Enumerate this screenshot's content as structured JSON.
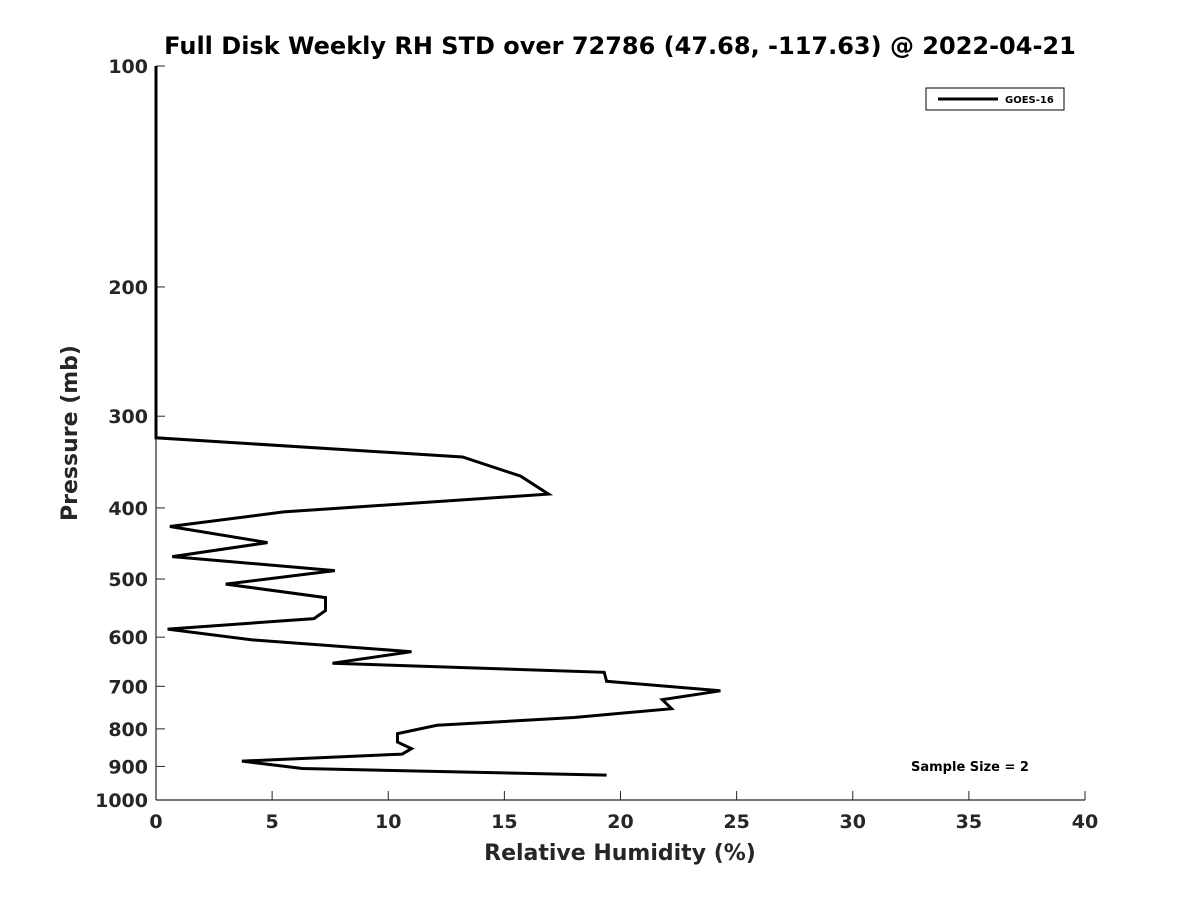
{
  "chart_data": {
    "type": "line",
    "title": "Full Disk Weekly RH STD over 72786 (47.68, -117.63) @ 2022-04-21",
    "xlabel": "Relative Humidity (%)",
    "ylabel": "Pressure (mb)",
    "xlim": [
      0,
      40
    ],
    "ylim": [
      100,
      1000
    ],
    "yscale": "log",
    "y_reversed": true,
    "grid": false,
    "xticks": [
      0,
      5,
      10,
      15,
      20,
      25,
      30,
      35,
      40
    ],
    "yticks": [
      100,
      200,
      300,
      400,
      500,
      600,
      700,
      800,
      900,
      1000
    ],
    "legend": {
      "position": "top-right"
    },
    "series": [
      {
        "name": "GOES-16",
        "color": "#000000",
        "points": [
          {
            "x": 0.0,
            "y": 100
          },
          {
            "x": 0.0,
            "y": 200
          },
          {
            "x": 0.0,
            "y": 300
          },
          {
            "x": 0.0,
            "y": 321
          },
          {
            "x": 13.2,
            "y": 341
          },
          {
            "x": 15.7,
            "y": 362
          },
          {
            "x": 16.9,
            "y": 383
          },
          {
            "x": 5.5,
            "y": 405
          },
          {
            "x": 0.6,
            "y": 424
          },
          {
            "x": 4.8,
            "y": 446
          },
          {
            "x": 0.7,
            "y": 466
          },
          {
            "x": 7.7,
            "y": 487
          },
          {
            "x": 3.0,
            "y": 508
          },
          {
            "x": 7.3,
            "y": 530
          },
          {
            "x": 7.3,
            "y": 552
          },
          {
            "x": 6.8,
            "y": 566
          },
          {
            "x": 0.5,
            "y": 585
          },
          {
            "x": 4.1,
            "y": 605
          },
          {
            "x": 11.0,
            "y": 628
          },
          {
            "x": 7.6,
            "y": 651
          },
          {
            "x": 19.3,
            "y": 670
          },
          {
            "x": 19.4,
            "y": 689
          },
          {
            "x": 24.3,
            "y": 710
          },
          {
            "x": 21.8,
            "y": 730
          },
          {
            "x": 22.2,
            "y": 751
          },
          {
            "x": 18.0,
            "y": 772
          },
          {
            "x": 12.1,
            "y": 791
          },
          {
            "x": 10.4,
            "y": 812
          },
          {
            "x": 10.4,
            "y": 834
          },
          {
            "x": 11.0,
            "y": 851
          },
          {
            "x": 10.6,
            "y": 866
          },
          {
            "x": 3.7,
            "y": 885
          },
          {
            "x": 6.3,
            "y": 906
          },
          {
            "x": 19.4,
            "y": 925
          }
        ]
      }
    ],
    "annotations": [
      {
        "text": "Sample Size = 2",
        "x": 32.5,
        "y": 900
      }
    ]
  }
}
